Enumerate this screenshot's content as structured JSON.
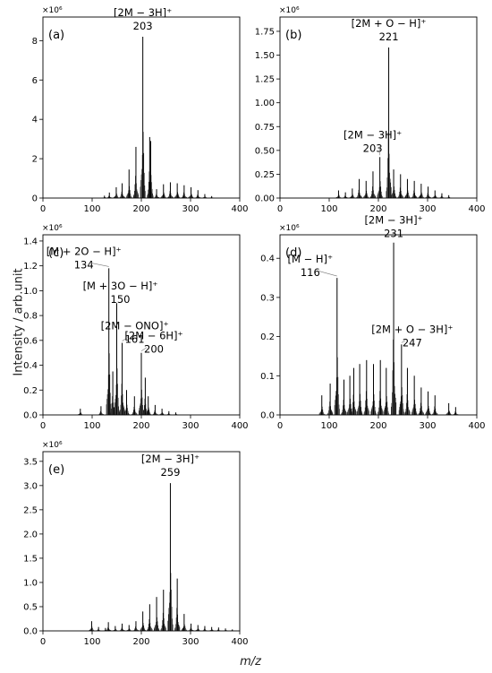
{
  "figure": {
    "ylabel": "Intensity / arb.unit",
    "xlabel": "m/z"
  },
  "chart_data": [
    {
      "type": "bar",
      "panel": "(a)",
      "exponent": "×10⁶",
      "xlim": [
        0,
        400
      ],
      "ylim": [
        0,
        9.2
      ],
      "xticks": [
        0,
        100,
        200,
        300,
        400
      ],
      "yticks": [
        0,
        2,
        4,
        6,
        8
      ],
      "ytick_labels": [
        "0",
        "2",
        "4",
        "6",
        "8"
      ],
      "peaks": [
        [
          125,
          0.12
        ],
        [
          135,
          0.28
        ],
        [
          149,
          0.55
        ],
        [
          161,
          0.75
        ],
        [
          175,
          1.45
        ],
        [
          189,
          2.6
        ],
        [
          203,
          8.2
        ],
        [
          217,
          3.1
        ],
        [
          219,
          2.9
        ],
        [
          231,
          0.45
        ],
        [
          245,
          0.7
        ],
        [
          259,
          0.8
        ],
        [
          273,
          0.75
        ],
        [
          287,
          0.65
        ],
        [
          301,
          0.55
        ],
        [
          315,
          0.4
        ],
        [
          329,
          0.2
        ],
        [
          343,
          0.1
        ]
      ],
      "annotations": [
        {
          "formula": "[2M − 3H]⁺",
          "mass": "203",
          "x": 203,
          "y": 8.2
        }
      ]
    },
    {
      "type": "bar",
      "panel": "(b)",
      "exponent": "×10⁶",
      "xlim": [
        0,
        400
      ],
      "ylim": [
        0,
        1.9
      ],
      "xticks": [
        0,
        100,
        200,
        300,
        400
      ],
      "yticks": [
        0,
        0.25,
        0.5,
        0.75,
        1.0,
        1.25,
        1.5,
        1.75
      ],
      "ytick_labels": [
        "0.00",
        "0.25",
        "0.50",
        "0.75",
        "1.00",
        "1.25",
        "1.50",
        "1.75"
      ],
      "peaks": [
        [
          119,
          0.08
        ],
        [
          133,
          0.06
        ],
        [
          147,
          0.1
        ],
        [
          161,
          0.2
        ],
        [
          175,
          0.18
        ],
        [
          189,
          0.28
        ],
        [
          203,
          0.43
        ],
        [
          221,
          1.58
        ],
        [
          231,
          0.3
        ],
        [
          245,
          0.25
        ],
        [
          259,
          0.2
        ],
        [
          273,
          0.18
        ],
        [
          287,
          0.15
        ],
        [
          301,
          0.12
        ],
        [
          315,
          0.08
        ],
        [
          329,
          0.05
        ],
        [
          343,
          0.03
        ]
      ],
      "annotations": [
        {
          "formula": "[2M + O − H]⁺",
          "mass": "221",
          "x": 221,
          "y": 1.58
        },
        {
          "formula": "[2M − 3H]⁺",
          "mass": "203",
          "x": 203,
          "y": 0.43
        }
      ]
    },
    {
      "type": "bar",
      "panel": "(c)",
      "exponent": "×10⁶",
      "xlim": [
        0,
        400
      ],
      "ylim": [
        0,
        1.45
      ],
      "xticks": [
        0,
        100,
        200,
        300,
        400
      ],
      "yticks": [
        0,
        0.2,
        0.4,
        0.6,
        0.8,
        1.0,
        1.2,
        1.4
      ],
      "ytick_labels": [
        "0.0",
        "0.2",
        "0.4",
        "0.6",
        "0.8",
        "1.0",
        "1.2",
        "1.4"
      ],
      "peaks": [
        [
          76,
          0.05
        ],
        [
          118,
          0.07
        ],
        [
          134,
          1.18
        ],
        [
          142,
          0.35
        ],
        [
          150,
          0.9
        ],
        [
          161,
          0.58
        ],
        [
          170,
          0.2
        ],
        [
          186,
          0.15
        ],
        [
          200,
          0.5
        ],
        [
          208,
          0.3
        ],
        [
          214,
          0.15
        ],
        [
          228,
          0.08
        ],
        [
          242,
          0.05
        ],
        [
          256,
          0.03
        ],
        [
          270,
          0.02
        ]
      ],
      "annotations": [
        {
          "formula": "[M + 2O − H]⁺",
          "mass": "134",
          "x": 134,
          "y": 1.18
        },
        {
          "formula": "[M + 3O − H]⁺",
          "mass": "150",
          "x": 150,
          "y": 0.9
        },
        {
          "formula": "[2M − ONO]⁺",
          "mass": "161",
          "x": 161,
          "y": 0.58
        },
        {
          "formula": "[2M − 6H]⁺",
          "mass": "200",
          "x": 200,
          "y": 0.5
        }
      ]
    },
    {
      "type": "bar",
      "panel": "(d)",
      "exponent": "×10⁶",
      "xlim": [
        0,
        400
      ],
      "ylim": [
        0,
        0.46
      ],
      "xticks": [
        0,
        100,
        200,
        300,
        400
      ],
      "yticks": [
        0,
        0.1,
        0.2,
        0.3,
        0.4
      ],
      "ytick_labels": [
        "0.0",
        "0.1",
        "0.2",
        "0.3",
        "0.4"
      ],
      "peaks": [
        [
          85,
          0.05
        ],
        [
          102,
          0.08
        ],
        [
          116,
          0.35
        ],
        [
          130,
          0.09
        ],
        [
          142,
          0.1
        ],
        [
          150,
          0.12
        ],
        [
          162,
          0.13
        ],
        [
          176,
          0.14
        ],
        [
          190,
          0.13
        ],
        [
          204,
          0.14
        ],
        [
          216,
          0.12
        ],
        [
          231,
          0.44
        ],
        [
          247,
          0.18
        ],
        [
          259,
          0.12
        ],
        [
          273,
          0.1
        ],
        [
          287,
          0.07
        ],
        [
          301,
          0.06
        ],
        [
          315,
          0.05
        ],
        [
          343,
          0.03
        ],
        [
          357,
          0.02
        ]
      ],
      "annotations": [
        {
          "formula": "[2M − 3H]⁺",
          "mass": "231",
          "x": 231,
          "y": 0.44
        },
        {
          "formula": "[M − H]⁺",
          "mass": "116",
          "x": 116,
          "y": 0.35
        },
        {
          "formula": "[2M + O − 3H]⁺",
          "mass": "247",
          "x": 247,
          "y": 0.18
        }
      ]
    },
    {
      "type": "bar",
      "panel": "(e)",
      "exponent": "×10⁶",
      "xlim": [
        0,
        400
      ],
      "ylim": [
        0,
        3.7
      ],
      "xticks": [
        0,
        100,
        200,
        300,
        400
      ],
      "yticks": [
        0,
        0.5,
        1.0,
        1.5,
        2.0,
        2.5,
        3.0,
        3.5
      ],
      "ytick_labels": [
        "0.0",
        "0.5",
        "1.0",
        "1.5",
        "2.0",
        "2.5",
        "3.0",
        "3.5"
      ],
      "peaks": [
        [
          99,
          0.2
        ],
        [
          113,
          0.08
        ],
        [
          127,
          0.06
        ],
        [
          133,
          0.18
        ],
        [
          147,
          0.1
        ],
        [
          161,
          0.15
        ],
        [
          175,
          0.12
        ],
        [
          189,
          0.2
        ],
        [
          203,
          0.4
        ],
        [
          217,
          0.55
        ],
        [
          231,
          0.7
        ],
        [
          245,
          0.85
        ],
        [
          259,
          3.05
        ],
        [
          273,
          1.08
        ],
        [
          287,
          0.35
        ],
        [
          301,
          0.15
        ],
        [
          315,
          0.12
        ],
        [
          329,
          0.1
        ],
        [
          343,
          0.08
        ],
        [
          357,
          0.07
        ],
        [
          371,
          0.05
        ],
        [
          385,
          0.03
        ]
      ],
      "annotations": [
        {
          "formula": "[2M − 3H]⁺",
          "mass": "259",
          "x": 259,
          "y": 3.05
        }
      ]
    }
  ]
}
